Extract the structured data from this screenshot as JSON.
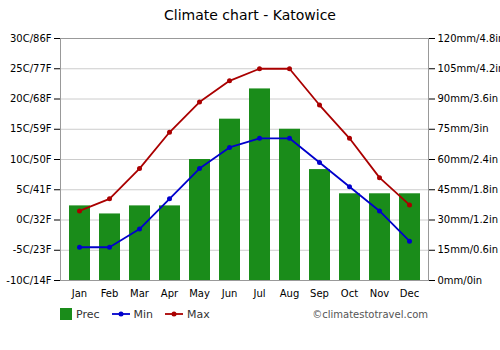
{
  "chart_data": {
    "type": "bar",
    "title": "Climate chart - Katowice",
    "categories": [
      "Jan",
      "Feb",
      "Mar",
      "Apr",
      "May",
      "Jun",
      "Jul",
      "Aug",
      "Sep",
      "Oct",
      "Nov",
      "Dec"
    ],
    "series": [
      {
        "name": "Prec",
        "type": "bar",
        "axis": "y2",
        "color": "#1a8c1a",
        "values": [
          37,
          33,
          37,
          37,
          60,
          80,
          95,
          75,
          55,
          43,
          43,
          43
        ]
      },
      {
        "name": "Min",
        "type": "line",
        "color": "#0000cc",
        "marker": "circle",
        "values": [
          -4.5,
          -4.5,
          -1.5,
          3.5,
          8.5,
          12.0,
          13.5,
          13.5,
          9.5,
          5.5,
          1.5,
          -3.5
        ]
      },
      {
        "name": "Max",
        "type": "line",
        "color": "#aa0000",
        "marker": "circle",
        "values": [
          1.5,
          3.5,
          8.5,
          14.5,
          19.5,
          23.0,
          25.0,
          25.0,
          19.0,
          13.5,
          7.0,
          2.5
        ]
      }
    ],
    "ylim": [
      -10,
      30
    ],
    "yticks": [
      {
        "value": -10,
        "label": "-10C/14F"
      },
      {
        "value": -5,
        "label": "-5C/23F"
      },
      {
        "value": 0,
        "label": "0C/32F"
      },
      {
        "value": 5,
        "label": "5C/41F"
      },
      {
        "value": 10,
        "label": "10C/50F"
      },
      {
        "value": 15,
        "label": "15C/59F"
      },
      {
        "value": 20,
        "label": "20C/68F"
      },
      {
        "value": 25,
        "label": "25C/77F"
      },
      {
        "value": 30,
        "label": "30C/86F"
      }
    ],
    "y2lim": [
      0,
      120
    ],
    "y2ticks": [
      {
        "value": 0,
        "label": "0mm/0in"
      },
      {
        "value": 15,
        "label": "15mm/0.6in"
      },
      {
        "value": 30,
        "label": "30mm/1.2in"
      },
      {
        "value": 45,
        "label": "45mm/1.8in"
      },
      {
        "value": 60,
        "label": "60mm/2.4in"
      },
      {
        "value": 75,
        "label": "75mm/3in"
      },
      {
        "value": 90,
        "label": "90mm/3.6in"
      },
      {
        "value": 105,
        "label": "105mm/4.2in"
      },
      {
        "value": 120,
        "label": "120mm/4.8in"
      }
    ],
    "grid": true,
    "legend": "bottom",
    "annotations": [
      "©climatestotravel.com"
    ]
  }
}
